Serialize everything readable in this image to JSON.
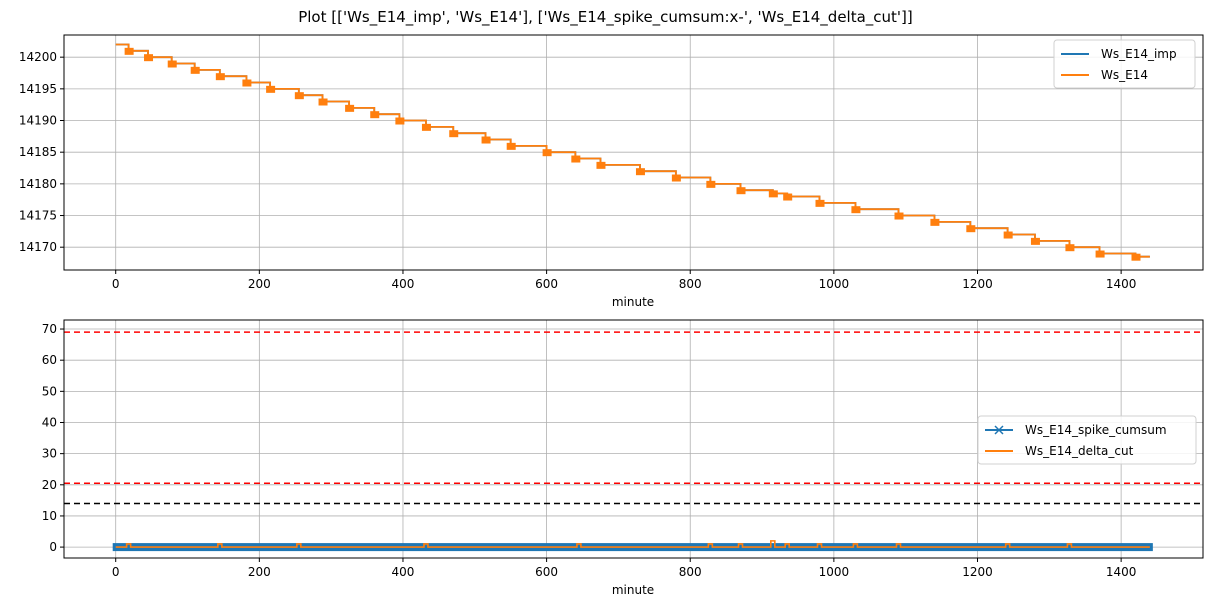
{
  "figure": {
    "title": "Plot [['Ws_E14_imp', 'Ws_E14'], ['Ws_E14_spike_cumsum:x-', 'Ws_E14_delta_cut']]"
  },
  "colors": {
    "blue": "#1f77b4",
    "orange": "#ff7f0e",
    "red_dashed": "#ff0000",
    "black_dashed": "#000000",
    "grid": "#b0b0b0"
  },
  "chart_data": [
    {
      "type": "line",
      "title": "",
      "xlabel": "minute",
      "ylabel": "",
      "xlim": [
        -72,
        1514
      ],
      "ylim": [
        14166.4,
        14203.5
      ],
      "grid": true,
      "legend_position": "upper right",
      "xticks": [
        0,
        200,
        400,
        600,
        800,
        1000,
        1200,
        1400
      ],
      "xtick_labels": [
        "0",
        "200",
        "400",
        "600",
        "800",
        "1000",
        "1200",
        "1400"
      ],
      "yticks": [
        14170,
        14175,
        14180,
        14185,
        14190,
        14195,
        14200
      ],
      "ytick_labels": [
        "14170",
        "14175",
        "14180",
        "14185",
        "14190",
        "14195",
        "14200"
      ],
      "legend": [
        "Ws_E14_imp",
        "Ws_E14"
      ],
      "series": [
        {
          "name": "Ws_E14_imp",
          "color": "#1f77b4",
          "style": "step",
          "x": [
            0,
            18,
            45,
            78,
            110,
            145,
            182,
            215,
            255,
            288,
            325,
            360,
            395,
            432,
            470,
            515,
            550,
            600,
            640,
            675,
            730,
            780,
            828,
            870,
            915,
            935,
            980,
            1030,
            1090,
            1140,
            1190,
            1242,
            1280,
            1328,
            1370,
            1420,
            1440
          ],
          "values": [
            14202,
            14201,
            14200,
            14199,
            14198,
            14197,
            14196,
            14195,
            14194,
            14193,
            14192,
            14191,
            14190,
            14189,
            14188,
            14187,
            14186,
            14185,
            14184,
            14183,
            14182,
            14181,
            14180,
            14179,
            14178.5,
            14178,
            14177,
            14176,
            14175,
            14174,
            14173,
            14172,
            14171,
            14170,
            14169,
            14168.5,
            14168.5
          ]
        },
        {
          "name": "Ws_E14",
          "color": "#ff7f0e",
          "style": "step",
          "x": [
            0,
            18,
            45,
            78,
            110,
            145,
            182,
            215,
            255,
            288,
            325,
            360,
            395,
            432,
            470,
            515,
            550,
            600,
            640,
            675,
            730,
            780,
            828,
            870,
            915,
            935,
            980,
            1030,
            1090,
            1140,
            1190,
            1242,
            1280,
            1328,
            1370,
            1420,
            1440
          ],
          "values": [
            14202,
            14201,
            14200,
            14199,
            14198,
            14197,
            14196,
            14195,
            14194,
            14193,
            14192,
            14191,
            14190,
            14189,
            14188,
            14187,
            14186,
            14185,
            14184,
            14183,
            14182,
            14181,
            14180,
            14179,
            14178.5,
            14178,
            14177,
            14176,
            14175,
            14174,
            14173,
            14172,
            14171,
            14170,
            14169,
            14168.5,
            14168.5
          ]
        }
      ]
    },
    {
      "type": "line",
      "title": "",
      "xlabel": "minute",
      "ylabel": "",
      "xlim": [
        -72,
        1514
      ],
      "ylim": [
        -3.5,
        72.9
      ],
      "grid": true,
      "legend_position": "center right",
      "xticks": [
        0,
        200,
        400,
        600,
        800,
        1000,
        1200,
        1400
      ],
      "xtick_labels": [
        "0",
        "200",
        "400",
        "600",
        "800",
        "1000",
        "1200",
        "1400"
      ],
      "yticks": [
        0,
        10,
        20,
        30,
        40,
        50,
        60,
        70
      ],
      "ytick_labels": [
        "0",
        "10",
        "20",
        "30",
        "40",
        "50",
        "60",
        "70"
      ],
      "legend": [
        "Ws_E14_spike_cumsum",
        "Ws_E14_delta_cut"
      ],
      "series": [
        {
          "name": "Ws_E14_spike_cumsum",
          "color": "#1f77b4",
          "marker": "x",
          "x": [
            0,
            1440
          ],
          "values": [
            0,
            0
          ]
        },
        {
          "name": "Ws_E14_delta_cut",
          "color": "#ff7f0e",
          "spikes_x": [
            18,
            145,
            255,
            432,
            645,
            828,
            870,
            915,
            935,
            980,
            1030,
            1090,
            1242,
            1328
          ],
          "spike_values": [
            1,
            1,
            1,
            1,
            1,
            1,
            1,
            2,
            1,
            1,
            1,
            1,
            1,
            1
          ],
          "baseline": 0
        }
      ],
      "hlines": [
        {
          "y": 69,
          "color": "#ff0000",
          "style": "dashed"
        },
        {
          "y": 20.5,
          "color": "#ff0000",
          "style": "dashed"
        },
        {
          "y": 14,
          "color": "#000000",
          "style": "dashed"
        }
      ]
    }
  ]
}
